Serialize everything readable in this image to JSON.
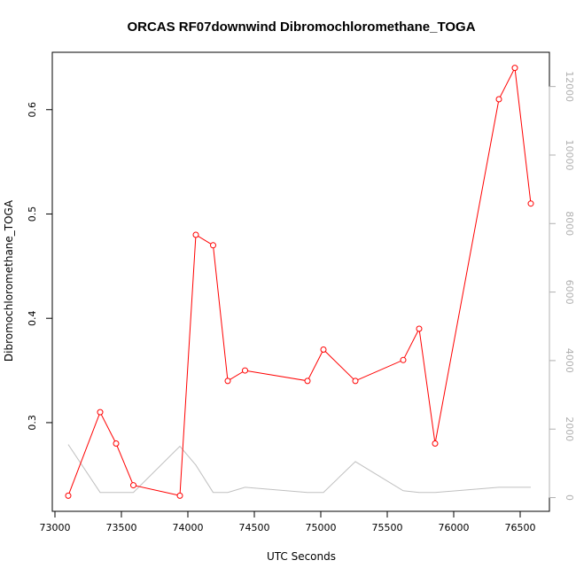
{
  "chart_data": {
    "type": "line",
    "title": "ORCAS RF07downwind Dibromochloromethane_TOGA",
    "xlabel": "UTC Seconds",
    "ylabel": "Dibromochloromethane_TOGA",
    "xlim": [
      72980,
      76720
    ],
    "ylim": [
      0.215,
      0.655
    ],
    "y2lim": [
      -400,
      13000
    ],
    "x_ticks": [
      73000,
      73500,
      74000,
      74500,
      75000,
      75500,
      76000,
      76500
    ],
    "y_ticks": [
      0.3,
      0.4,
      0.5,
      0.6
    ],
    "y2_ticks": [
      0,
      2000,
      4000,
      6000,
      8000,
      10000,
      12000
    ],
    "grid": false,
    "series": [
      {
        "axis": "left",
        "color": "#ff0000",
        "marker": "circle-open",
        "x": [
          73100,
          73340,
          73460,
          73590,
          73940,
          74060,
          74190,
          74300,
          74430,
          74900,
          75020,
          75260,
          75620,
          75740,
          75860,
          76340,
          76460,
          76580
        ],
        "y": [
          0.23,
          0.31,
          0.28,
          0.24,
          0.23,
          0.48,
          0.47,
          0.34,
          0.35,
          0.34,
          0.37,
          0.34,
          0.36,
          0.39,
          0.28,
          0.61,
          0.64,
          0.51
        ]
      },
      {
        "axis": "right",
        "color": "#c0c0c0",
        "marker": "none",
        "x": [
          73100,
          73340,
          73590,
          73940,
          74060,
          74190,
          74300,
          74430,
          74900,
          75020,
          75260,
          75620,
          75740,
          75860,
          76340,
          76460,
          76580
        ],
        "y": [
          1550,
          150,
          150,
          1500,
          950,
          150,
          150,
          300,
          150,
          150,
          1050,
          200,
          150,
          150,
          300,
          300,
          300
        ]
      }
    ]
  }
}
